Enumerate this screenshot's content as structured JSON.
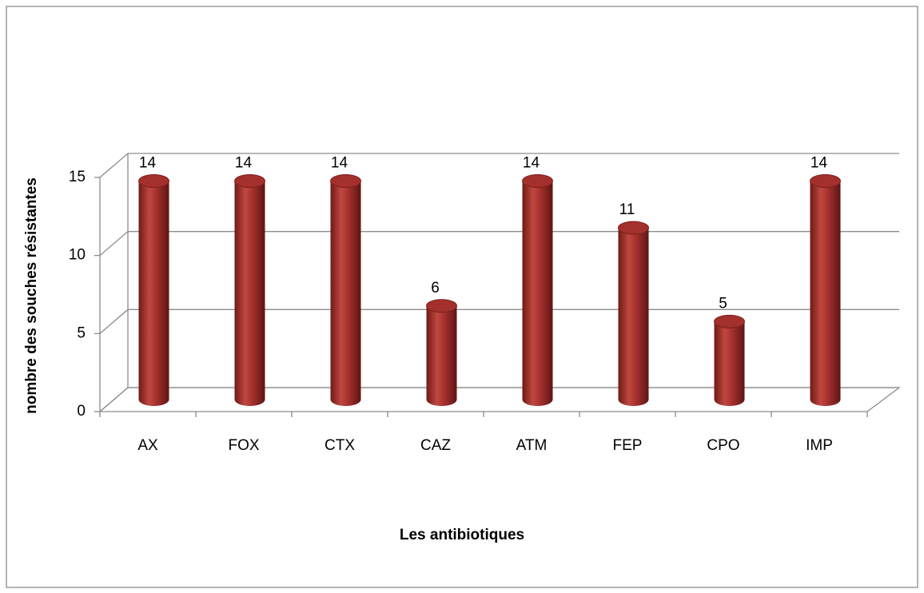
{
  "chart_data": {
    "type": "bar3d",
    "x_label": "Les antibiotiques",
    "y_label": "nombre des souches résistantes",
    "categories": [
      "AX",
      "FOX",
      "CTX",
      "CAZ",
      "ATM",
      "FEP",
      "CPO",
      "IMP"
    ],
    "values": [
      14,
      14,
      14,
      6,
      14,
      11,
      5,
      14
    ],
    "color": "#a3302c",
    "ylim": [
      0,
      15
    ],
    "yticks": [
      0,
      5,
      10,
      15
    ],
    "grid": true
  }
}
